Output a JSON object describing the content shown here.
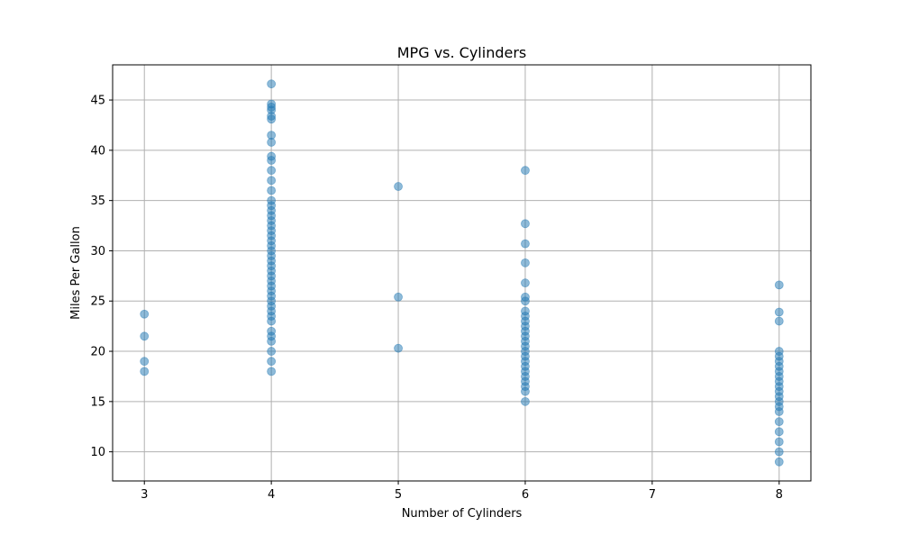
{
  "chart_data": {
    "type": "scatter",
    "title": "MPG vs. Cylinders",
    "xlabel": "Number of Cylinders",
    "ylabel": "Miles Per Gallon",
    "xlim": [
      2.75,
      8.25
    ],
    "ylim": [
      7.1,
      48.5
    ],
    "xticks": [
      3,
      4,
      5,
      6,
      7,
      8
    ],
    "yticks": [
      10,
      15,
      20,
      25,
      30,
      35,
      40,
      45
    ],
    "grid": true,
    "marker_color": "#1f77b4",
    "marker_alpha": 0.5,
    "series": [
      {
        "points": [
          [
            3,
            18.0
          ],
          [
            3,
            19.0
          ],
          [
            3,
            21.5
          ],
          [
            3,
            23.7
          ],
          [
            4,
            18.0
          ],
          [
            4,
            19.0
          ],
          [
            4,
            20.0
          ],
          [
            4,
            21.0
          ],
          [
            4,
            21.5
          ],
          [
            4,
            22.0
          ],
          [
            4,
            23.0
          ],
          [
            4,
            23.5
          ],
          [
            4,
            24.0
          ],
          [
            4,
            24.5
          ],
          [
            4,
            25.0
          ],
          [
            4,
            25.5
          ],
          [
            4,
            26.0
          ],
          [
            4,
            26.5
          ],
          [
            4,
            27.0
          ],
          [
            4,
            27.5
          ],
          [
            4,
            28.0
          ],
          [
            4,
            28.5
          ],
          [
            4,
            29.0
          ],
          [
            4,
            29.5
          ],
          [
            4,
            30.0
          ],
          [
            4,
            30.5
          ],
          [
            4,
            31.0
          ],
          [
            4,
            31.5
          ],
          [
            4,
            32.0
          ],
          [
            4,
            32.5
          ],
          [
            4,
            33.0
          ],
          [
            4,
            33.5
          ],
          [
            4,
            34.0
          ],
          [
            4,
            34.5
          ],
          [
            4,
            35.0
          ],
          [
            4,
            36.0
          ],
          [
            4,
            37.0
          ],
          [
            4,
            38.0
          ],
          [
            4,
            39.0
          ],
          [
            4,
            39.4
          ],
          [
            4,
            40.8
          ],
          [
            4,
            41.5
          ],
          [
            4,
            43.1
          ],
          [
            4,
            43.4
          ],
          [
            4,
            44.0
          ],
          [
            4,
            44.3
          ],
          [
            4,
            44.6
          ],
          [
            4,
            46.6
          ],
          [
            5,
            20.3
          ],
          [
            5,
            25.4
          ],
          [
            5,
            36.4
          ],
          [
            6,
            15.0
          ],
          [
            6,
            16.0
          ],
          [
            6,
            16.5
          ],
          [
            6,
            17.0
          ],
          [
            6,
            17.5
          ],
          [
            6,
            18.0
          ],
          [
            6,
            18.5
          ],
          [
            6,
            19.0
          ],
          [
            6,
            19.5
          ],
          [
            6,
            20.0
          ],
          [
            6,
            20.5
          ],
          [
            6,
            21.0
          ],
          [
            6,
            21.5
          ],
          [
            6,
            22.0
          ],
          [
            6,
            22.5
          ],
          [
            6,
            23.0
          ],
          [
            6,
            23.5
          ],
          [
            6,
            24.0
          ],
          [
            6,
            25.0
          ],
          [
            6,
            25.4
          ],
          [
            6,
            26.8
          ],
          [
            6,
            28.8
          ],
          [
            6,
            30.7
          ],
          [
            6,
            32.7
          ],
          [
            6,
            38.0
          ],
          [
            8,
            9.0
          ],
          [
            8,
            10.0
          ],
          [
            8,
            11.0
          ],
          [
            8,
            12.0
          ],
          [
            8,
            13.0
          ],
          [
            8,
            14.0
          ],
          [
            8,
            14.5
          ],
          [
            8,
            15.0
          ],
          [
            8,
            15.5
          ],
          [
            8,
            16.0
          ],
          [
            8,
            16.5
          ],
          [
            8,
            17.0
          ],
          [
            8,
            17.5
          ],
          [
            8,
            18.0
          ],
          [
            8,
            18.5
          ],
          [
            8,
            19.0
          ],
          [
            8,
            19.5
          ],
          [
            8,
            20.0
          ],
          [
            8,
            23.0
          ],
          [
            8,
            23.9
          ],
          [
            8,
            26.6
          ]
        ]
      }
    ]
  }
}
